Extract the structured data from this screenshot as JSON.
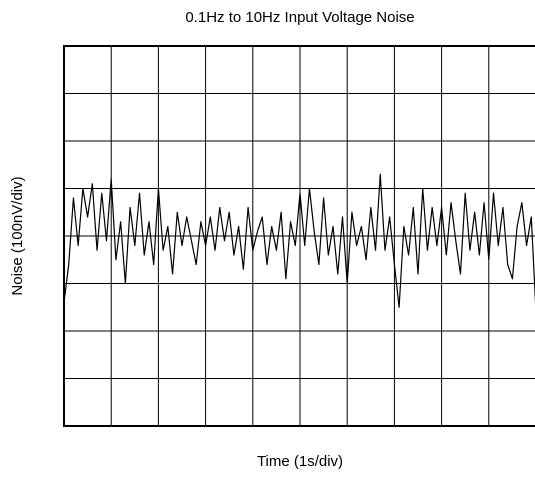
{
  "chart_data": {
    "type": "line",
    "title": "0.1Hz to 10Hz Input Voltage Noise",
    "x_label": "Time (1s/div)",
    "y_label": "Noise (100nV/div)",
    "x": [
      0,
      0.1,
      0.2,
      0.3,
      0.4,
      0.5,
      0.6,
      0.7,
      0.8,
      0.9,
      1,
      1.1,
      1.2,
      1.3,
      1.4,
      1.5,
      1.6,
      1.7,
      1.8,
      1.9,
      2,
      2.1,
      2.2,
      2.3,
      2.4,
      2.5,
      2.6,
      2.7,
      2.8,
      2.9,
      3,
      3.1,
      3.2,
      3.3,
      3.4,
      3.5,
      3.6,
      3.7,
      3.8,
      3.9,
      4,
      4.1,
      4.2,
      4.3,
      4.4,
      4.5,
      4.6,
      4.7,
      4.8,
      4.9,
      5,
      5.1,
      5.2,
      5.3,
      5.4,
      5.5,
      5.6,
      5.7,
      5.8,
      5.9,
      6,
      6.1,
      6.2,
      6.3,
      6.4,
      6.5,
      6.6,
      6.7,
      6.8,
      6.9,
      7,
      7.1,
      7.2,
      7.3,
      7.4,
      7.5,
      7.6,
      7.7,
      7.8,
      7.9,
      8,
      8.1,
      8.2,
      8.3,
      8.4,
      8.5,
      8.6,
      8.7,
      8.8,
      8.9,
      9,
      9.1,
      9.2,
      9.3,
      9.4,
      9.5,
      9.6,
      9.7,
      9.8,
      9.9,
      10
    ],
    "series": [
      {
        "name": "Noise",
        "color": "#000000",
        "values": [
          -140,
          -60,
          80,
          -20,
          100,
          40,
          110,
          -30,
          90,
          -10,
          120,
          -50,
          30,
          -100,
          60,
          -20,
          90,
          -40,
          30,
          -60,
          100,
          -30,
          20,
          -80,
          50,
          -20,
          40,
          -10,
          -60,
          30,
          -20,
          40,
          -30,
          60,
          -10,
          50,
          -40,
          20,
          -70,
          60,
          -30,
          10,
          40,
          -60,
          20,
          -30,
          50,
          -90,
          30,
          -20,
          90,
          -20,
          100,
          10,
          -60,
          80,
          -40,
          20,
          -80,
          40,
          -100,
          50,
          -20,
          20,
          -50,
          60,
          -30,
          130,
          -30,
          40,
          -60,
          -150,
          20,
          -40,
          60,
          -80,
          100,
          -30,
          60,
          -20,
          60,
          -40,
          70,
          -10,
          -80,
          90,
          -30,
          50,
          -40,
          70,
          -50,
          90,
          -20,
          60,
          -60,
          -90,
          20,
          70,
          -20,
          40,
          -160
        ]
      }
    ],
    "xlim": [
      0,
      10
    ],
    "xticks": [
      0,
      1,
      2,
      3,
      4,
      5,
      6,
      7,
      8,
      9,
      10
    ],
    "ylim": [
      -400,
      400
    ],
    "yticks": [
      -400,
      -300,
      -200,
      -100,
      0,
      100,
      200,
      300,
      400
    ],
    "grid": true
  }
}
